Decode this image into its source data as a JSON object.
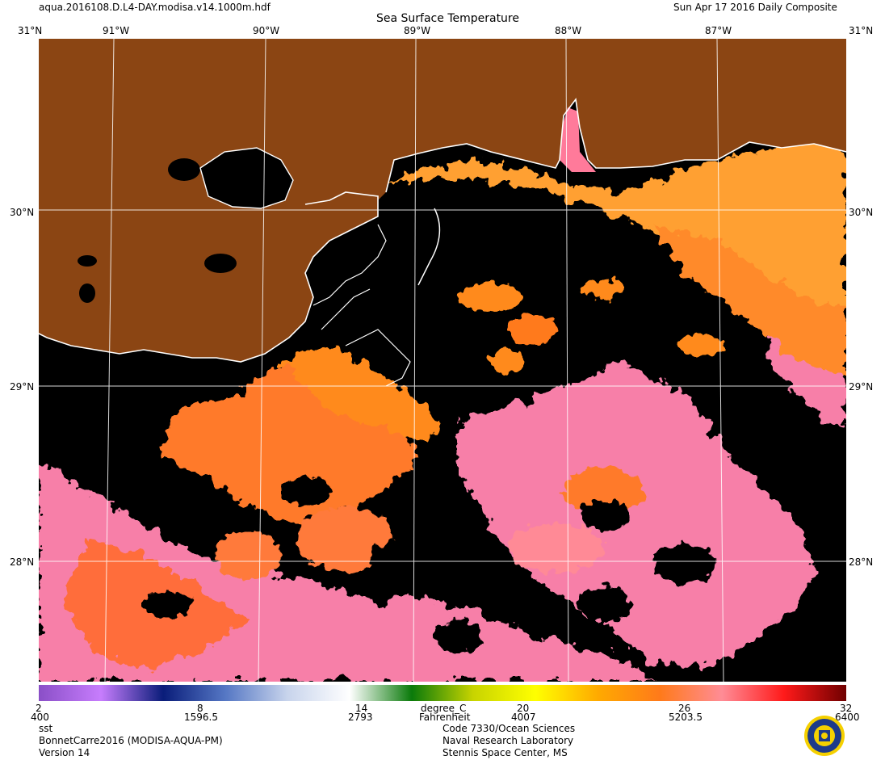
{
  "header": {
    "filename": "aqua.2016108.D.L4-DAY.modisa.v14.1000m.hdf",
    "title": "Sea Surface Temperature",
    "date": "Sun Apr 17 2016 Daily Composite"
  },
  "axes": {
    "longitudes": [
      "91°W",
      "90°W",
      "89°W",
      "88°W",
      "87°W"
    ],
    "latitudes": [
      "31°N",
      "30°N",
      "29°N",
      "28°N"
    ],
    "corner_top_left": "31°N",
    "corner_top_right": "31°N"
  },
  "colorbar": {
    "celsius_ticks": [
      "2",
      "8",
      "14",
      "20",
      "26",
      "32"
    ],
    "fahrenheit_ticks": [
      "400",
      "1596.5",
      "2793",
      "4007",
      "5203.5",
      "6400"
    ],
    "unit_c": "degree_C",
    "unit_f": "Fahrenheit",
    "colors": [
      "#8a4fc7",
      "#c77dfd",
      "#0a1d7a",
      "#5577c4",
      "#c8d4ec",
      "#ffffff",
      "#0a7a0a",
      "#c8d400",
      "#ffff00",
      "#ffaa00",
      "#ff7a1a",
      "#ff8c96",
      "#ff1a1a",
      "#700000"
    ]
  },
  "footer": {
    "left": [
      "sst",
      "BonnetCarre2016 (MODISA-AQUA-PM)",
      "Version 14"
    ],
    "right": [
      "Code 7330/Ocean Sciences",
      "Naval Research Laboratory",
      "Stennis Space Center, MS"
    ]
  },
  "map": {
    "land_color": "#8b4513",
    "no_data_color": "#000000",
    "grid_color": "#ffffff",
    "coast_color": "#ffffff"
  }
}
